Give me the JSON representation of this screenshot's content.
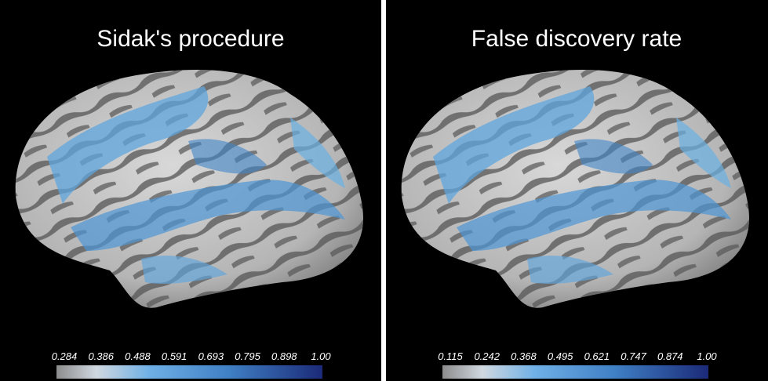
{
  "panels": [
    {
      "title": "Sidak's procedure",
      "colorbar": {
        "labels": [
          "0.284",
          "0.386",
          "0.488",
          "0.591",
          "0.693",
          "0.795",
          "0.898",
          "1.00"
        ]
      }
    },
    {
      "title": "False discovery rate",
      "colorbar": {
        "labels": [
          "0.115",
          "0.242",
          "0.368",
          "0.495",
          "0.621",
          "0.747",
          "0.874",
          "1.00"
        ]
      }
    }
  ]
}
